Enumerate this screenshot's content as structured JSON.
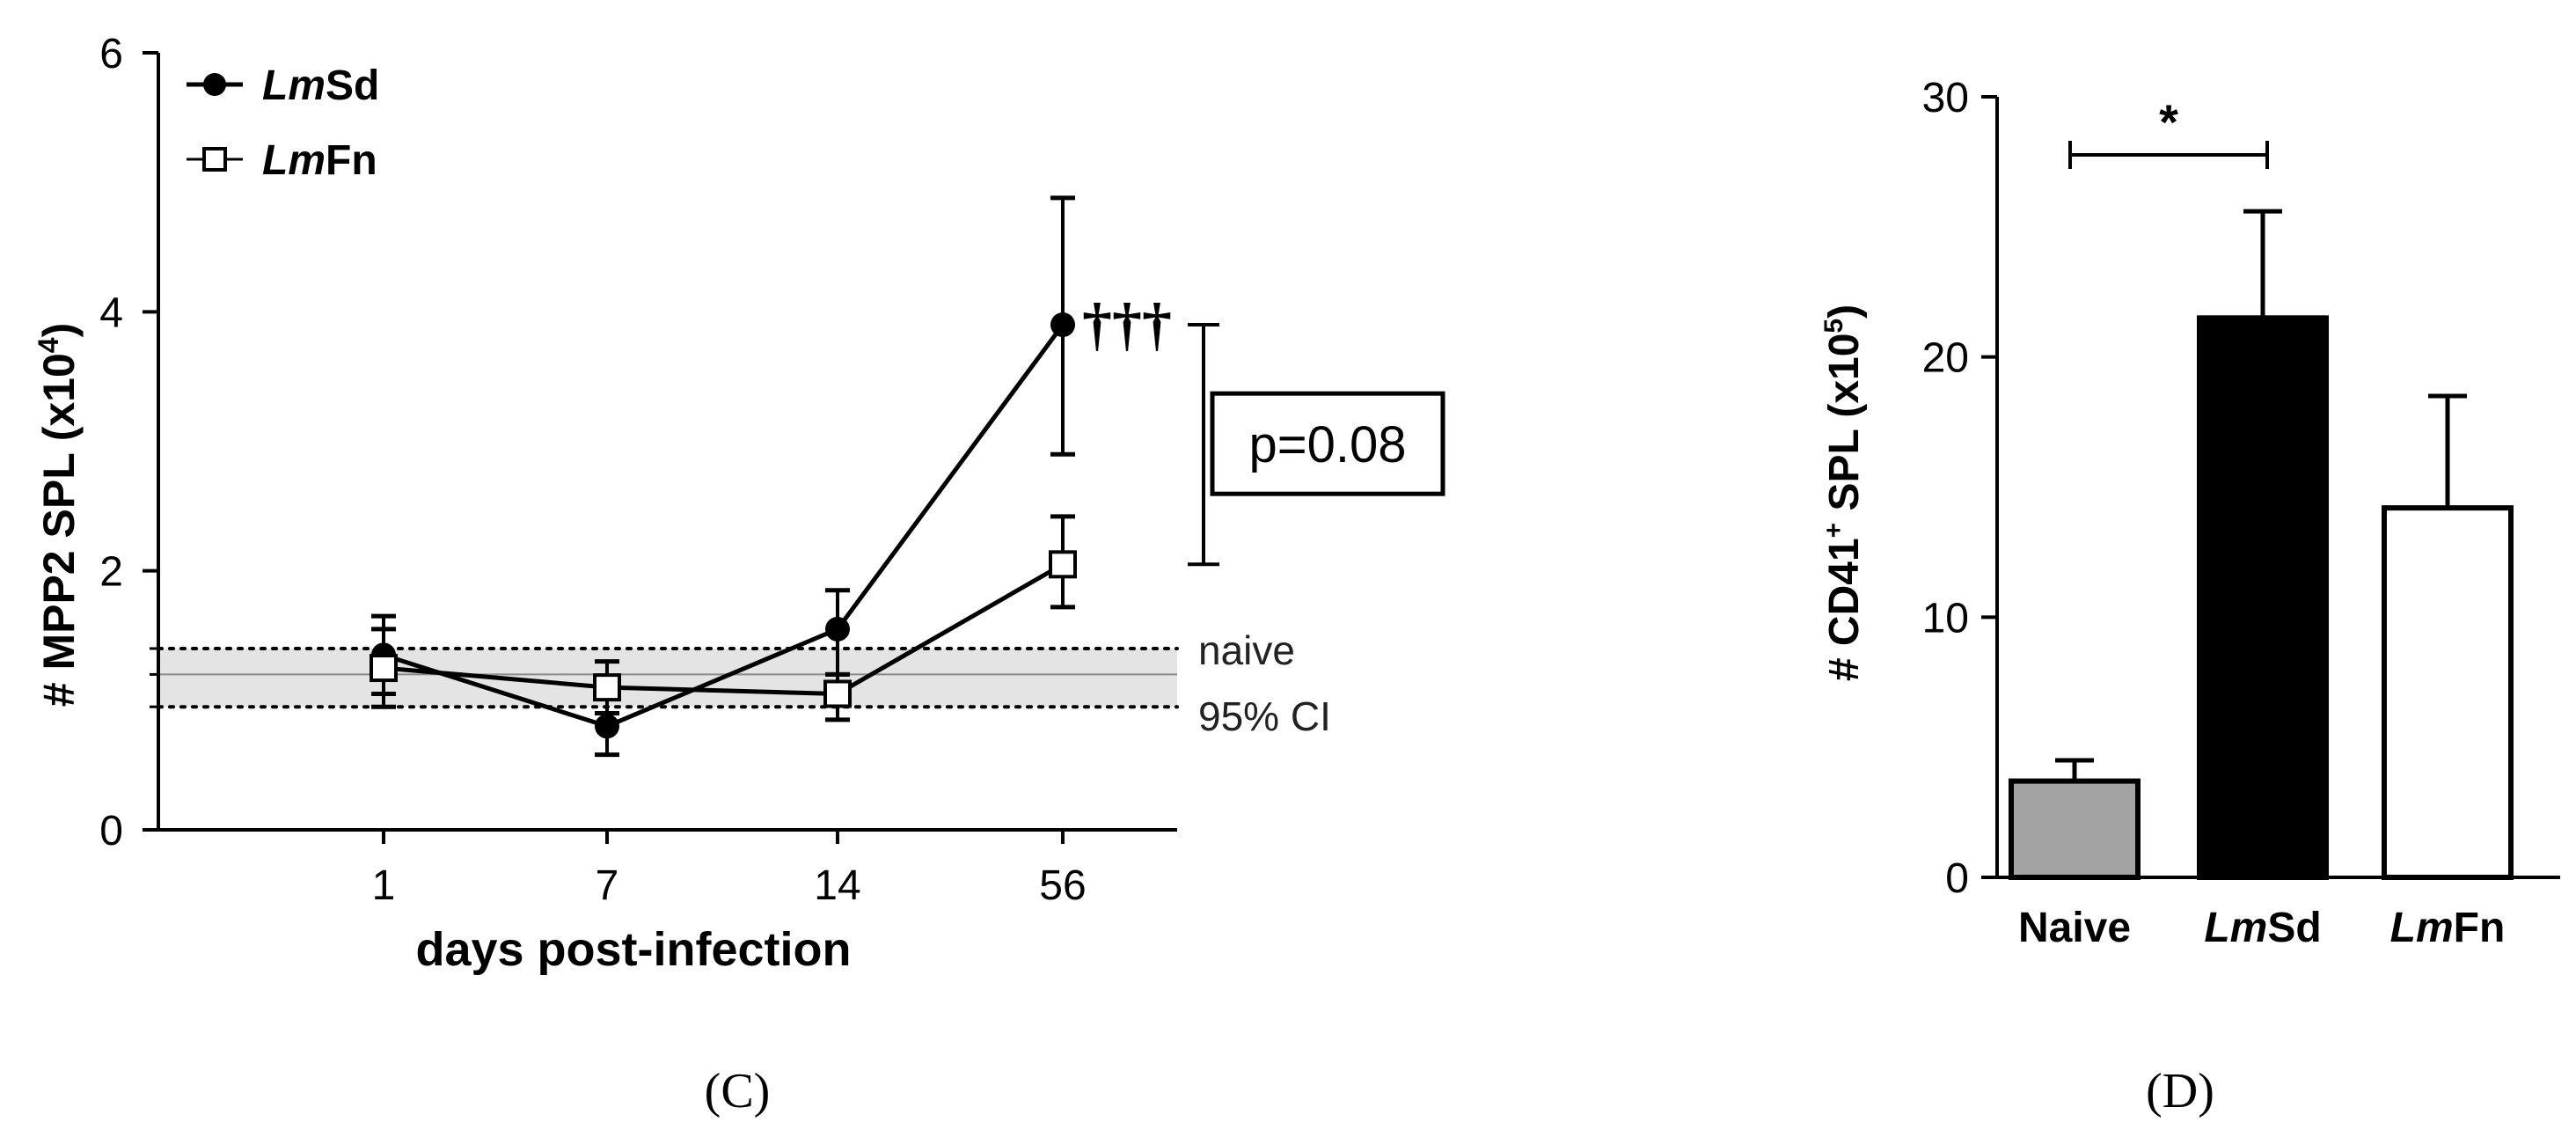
{
  "chart_data": [
    {
      "panel_label": "(C)",
      "type": "line",
      "xlabel": "days post-infection",
      "ylabel_main": "# MPP2 SPL (x10",
      "ylabel_exp": "4",
      "ylabel_close": ")",
      "categories": [
        "1",
        "7",
        "14",
        "56"
      ],
      "ylim": [
        0,
        6
      ],
      "yticks": [
        0,
        2,
        4,
        6
      ],
      "series": [
        {
          "name_italic": "Lm",
          "name_plain": "Sd",
          "marker": "filled-circle",
          "values": [
            1.35,
            0.8,
            1.55,
            3.9
          ],
          "err_low": [
            1.05,
            0.58,
            1.2,
            2.9
          ],
          "err_high": [
            1.65,
            1.05,
            1.85,
            4.88
          ]
        },
        {
          "name_italic": "Lm",
          "name_plain": "Fn",
          "marker": "open-square",
          "values": [
            1.25,
            1.1,
            1.05,
            2.05
          ],
          "err_low": [
            0.95,
            0.9,
            0.85,
            1.72
          ],
          "err_high": [
            1.55,
            1.3,
            1.2,
            2.42
          ]
        }
      ],
      "reference_band": {
        "center": 1.2,
        "low": 0.95,
        "high": 1.4,
        "label_line1": "naive",
        "label_line2": "95% CI"
      },
      "daggers": "†††",
      "comparison": {
        "from": 3.9,
        "to": 2.05,
        "label": "p=0.08"
      }
    },
    {
      "panel_label": "(D)",
      "type": "bar",
      "ylabel_main": "# CD41",
      "ylabel_sup": "+",
      "ylabel_rest": " SPL (x10",
      "ylabel_exp": "5",
      "ylabel_close": ")",
      "ylim": [
        0,
        30
      ],
      "yticks": [
        0,
        10,
        20,
        30
      ],
      "categories": [
        {
          "italic": "",
          "plain": "Naive"
        },
        {
          "italic": "Lm",
          "plain": "Sd"
        },
        {
          "italic": "Lm",
          "plain": "Fn"
        }
      ],
      "values": [
        3.7,
        21.5,
        14.2
      ],
      "errors": [
        0.8,
        4.1,
        4.3
      ],
      "bar_colors": [
        "#a3a3a3",
        "#000000",
        "#ffffff"
      ],
      "significance": {
        "from": 0,
        "to": 1,
        "label": "*"
      }
    }
  ]
}
